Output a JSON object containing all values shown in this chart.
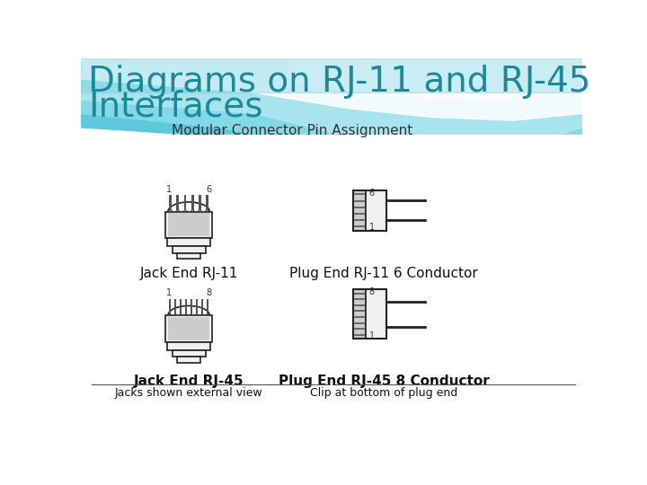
{
  "title_line1": "Diagrams on RJ-11 and RJ-45",
  "title_line2": "Interfaces",
  "title_color": "#1a8a9a",
  "subtitle": "Modular Connector Pin Assignment",
  "subtitle_color": "#333333",
  "white_bg": "#ffffff",
  "label_jack_rj11": "Jack End RJ-11",
  "label_plug_rj11": "Plug End RJ-11 6 Conductor",
  "label_jack_rj45": "Jack End RJ-45",
  "label_plug_rj45": "Plug End RJ-45 8 Conductor",
  "note_jacks": "Jacks shown external view",
  "note_clip": "Clip at bottom of plug end",
  "diagram_color": "#222222",
  "diagram_fill": "#e0e0e0",
  "diagram_fill2": "#f0f0f0",
  "teal1": "#5ec8dc",
  "teal2": "#8ddce8",
  "teal3": "#b8eaf2",
  "wave_white": "#daf4f8"
}
